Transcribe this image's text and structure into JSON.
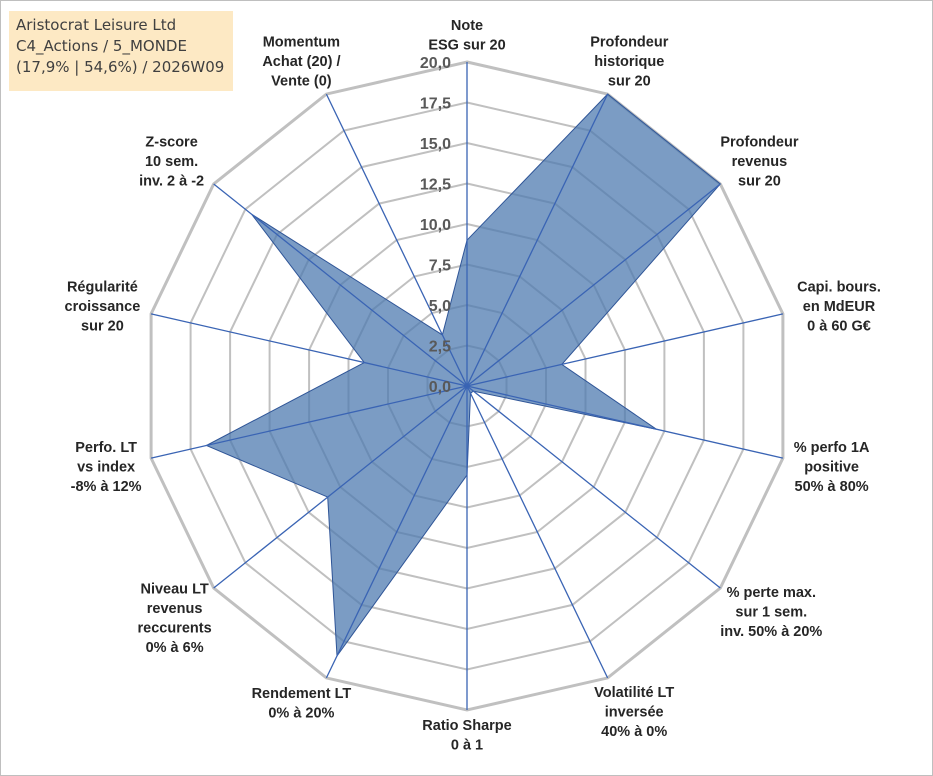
{
  "info": {
    "company": "Aristocrat Leisure Ltd",
    "portfolio": "C4_Actions / 5_MONDE",
    "stats": "(17,9% | 54,6%) / 2026W09"
  },
  "colors": {
    "fill": "#4f7bb0",
    "fill_opacity": 0.75,
    "spoke": "#3a64b4",
    "ring": "#c0c0c0",
    "infobox": "#fde9c4"
  },
  "chart_data": {
    "type": "radar",
    "title": "",
    "rmin": 0,
    "rmax": 20,
    "ticks": [
      "0,0",
      "2,5",
      "5,0",
      "7,5",
      "10,0",
      "12,5",
      "15,0",
      "17,5",
      "20,0"
    ],
    "axes": [
      {
        "label": [
          "Note",
          "ESG sur 20"
        ],
        "value": 9.0
      },
      {
        "label": [
          "Profondeur",
          "historique",
          "sur 20"
        ],
        "value": 20.0
      },
      {
        "label": [
          "Profondeur",
          "revenus",
          "sur 20"
        ],
        "value": 20.0
      },
      {
        "label": [
          "Capi. bours.",
          "en MdEUR",
          "0 à 60 G€"
        ],
        "value": 6.0
      },
      {
        "label": [
          "% perfo 1A",
          "positive",
          "50% à 80%"
        ],
        "value": 12.0
      },
      {
        "label": [
          "% perte max.",
          "sur 1 sem.",
          "inv. 50% à 20%"
        ],
        "value": 0.5
      },
      {
        "label": [
          "Volatilité LT",
          "inversée",
          "40% à 0%"
        ],
        "value": 0.5
      },
      {
        "label": [
          "Ratio Sharpe",
          "0 à 1"
        ],
        "value": 5.5
      },
      {
        "label": [
          "Rendement LT",
          "0% à 20%"
        ],
        "value": 18.5
      },
      {
        "label": [
          "Niveau LT",
          "revenus",
          "reccurents",
          "0% à 6%"
        ],
        "value": 11.0
      },
      {
        "label": [
          "Perfo. LT",
          "vs index",
          "-8% à 12%"
        ],
        "value": 16.5
      },
      {
        "label": [
          "Régularité",
          "croissance",
          "sur 20"
        ],
        "value": 6.5
      },
      {
        "label": [
          "Z-score",
          "10 sem.",
          "inv. 2 à -2"
        ],
        "value": 17.0
      },
      {
        "label": [
          "Momentum",
          "Achat (20) /",
          "Vente (0)"
        ],
        "value": 3.5
      }
    ]
  }
}
